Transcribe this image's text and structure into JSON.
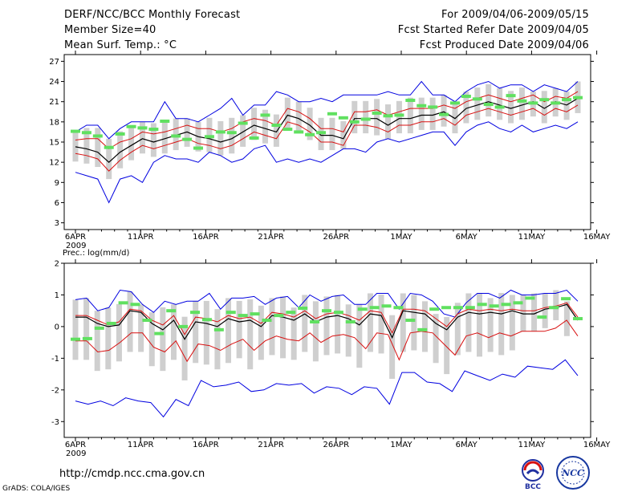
{
  "header": {
    "title": "DERF/NCC/BCC Monthly Forecast",
    "member_size": "Member Size=40",
    "variable": "Mean Surf. Temp.: °C",
    "period": "For 2009/04/06-2009/05/15",
    "started": "Fcst Started Refer Date 2009/04/05",
    "produced": "Fcst Produced Date 2009/04/06"
  },
  "footer": {
    "url": "http://cmdp.ncc.cma.gov.cn",
    "grads": "GrADS: COLA/IGES",
    "logo_bcc": "BCC",
    "logo_ncc": "NCC"
  },
  "colors": {
    "mean": "#000000",
    "band": "#d81010",
    "extreme": "#0000e0",
    "box": "#cfcfcf",
    "obs": "#60e060"
  },
  "chart_data": [
    {
      "type": "line",
      "title": "Mean Surf. Temp.: °C",
      "x_ticks": [
        "6APR",
        "11APR",
        "16APR",
        "21APR",
        "26APR",
        "1MAY",
        "6MAY",
        "11MAY",
        "16MAY"
      ],
      "x_year": "2009",
      "ylim": [
        2,
        28
      ],
      "y_ticks": [
        "3",
        "6",
        "9",
        "12",
        "15",
        "18",
        "21",
        "24",
        "27"
      ],
      "days": 40,
      "series": [
        {
          "name": "ensemble mean",
          "values": [
            14.3,
            14.0,
            13.5,
            12.0,
            13.5,
            14.5,
            15.5,
            15.0,
            15.5,
            16.0,
            16.5,
            15.8,
            15.5,
            15.0,
            15.5,
            16.5,
            17.5,
            17.0,
            16.5,
            19.0,
            18.5,
            17.5,
            16.0,
            16.0,
            15.5,
            18.5,
            18.5,
            18.5,
            17.5,
            18.5,
            18.5,
            19.0,
            19.0,
            19.5,
            18.5,
            20.0,
            20.5,
            21.0,
            20.5,
            20.0,
            20.5,
            21.0,
            20.0,
            21.0,
            20.5,
            21.5
          ]
        },
        {
          "name": "upper band",
          "values": [
            15.3,
            15.5,
            15.5,
            14.0,
            15.0,
            15.5,
            16.5,
            16.2,
            16.5,
            17.0,
            17.5,
            17.0,
            17.0,
            16.5,
            17.0,
            18.0,
            18.5,
            18.2,
            17.5,
            20.0,
            19.5,
            18.5,
            17.0,
            17.0,
            16.5,
            19.5,
            19.5,
            19.8,
            19.0,
            19.5,
            20.0,
            20.0,
            20.0,
            20.5,
            20.0,
            21.0,
            21.5,
            22.0,
            21.5,
            21.0,
            21.5,
            22.0,
            21.0,
            21.8,
            21.5,
            22.5
          ]
        },
        {
          "name": "lower band",
          "values": [
            13.3,
            13.0,
            12.5,
            10.7,
            12.3,
            13.5,
            14.5,
            14.0,
            14.5,
            15.0,
            15.5,
            14.8,
            14.5,
            14.0,
            14.5,
            15.5,
            16.5,
            16.0,
            15.5,
            18.0,
            17.5,
            16.5,
            15.0,
            15.0,
            14.5,
            17.5,
            17.5,
            17.2,
            16.5,
            17.5,
            17.5,
            18.0,
            18.0,
            18.5,
            17.5,
            19.0,
            19.5,
            20.0,
            19.5,
            19.0,
            19.5,
            20.0,
            19.0,
            20.0,
            19.5,
            20.5
          ]
        },
        {
          "name": "maximum",
          "values": [
            16.5,
            17.5,
            17.5,
            15.5,
            17.0,
            18.0,
            18.0,
            18.0,
            21.0,
            18.5,
            18.5,
            18.0,
            19.0,
            20.0,
            21.5,
            19.0,
            20.5,
            20.5,
            22.5,
            22.0,
            21.0,
            21.0,
            21.5,
            21.0,
            22.0,
            22.0,
            22.0,
            22.0,
            22.5,
            22.0,
            22.0,
            24.0,
            22.0,
            22.0,
            21.0,
            22.5,
            23.5,
            24.0,
            23.0,
            23.5,
            23.5,
            22.5,
            23.5,
            23.0,
            22.5,
            24.0
          ]
        },
        {
          "name": "minimum",
          "values": [
            10.5,
            10.0,
            9.5,
            6.0,
            9.5,
            10.0,
            9.0,
            12.0,
            13.0,
            12.5,
            12.5,
            12.0,
            13.5,
            13.0,
            12.0,
            12.5,
            14.0,
            14.5,
            12.0,
            12.5,
            12.0,
            12.5,
            12.0,
            13.0,
            14.0,
            14.0,
            13.5,
            15.0,
            15.5,
            15.0,
            15.5,
            16.0,
            16.5,
            16.5,
            14.5,
            16.5,
            17.5,
            18.0,
            17.0,
            16.5,
            17.5,
            16.5,
            17.0,
            17.5,
            17.0,
            18.0
          ]
        },
        {
          "name": "observation",
          "values": [
            16.6,
            16.4,
            15.9,
            14.2,
            16.2,
            17.3,
            17.1,
            16.9,
            18.1,
            15.9,
            15.4,
            14.1,
            15.8,
            16.5,
            16.4,
            17.8,
            15.6,
            19.0,
            17.5,
            16.9,
            16.5,
            16.1,
            16.4,
            19.2,
            18.6,
            18.0,
            18.4,
            19.3,
            18.9,
            19.0,
            21.2,
            20.4,
            20.2,
            19.1,
            20.8,
            21.8,
            21.4,
            20.6,
            20.2,
            21.9,
            21.1,
            20.8,
            21.3,
            20.8,
            21.3,
            21.6
          ]
        }
      ]
    },
    {
      "type": "line",
      "title": "Prec.: log(mm/d)",
      "x_ticks": [
        "6APR",
        "11APR",
        "16APR",
        "21APR",
        "26APR",
        "1MAY",
        "6MAY",
        "11MAY",
        "16MAY"
      ],
      "x_year": "2009",
      "ylim": [
        -3.5,
        2
      ],
      "y_ticks": [
        "-3",
        "-2",
        "-1",
        "0",
        "1",
        "2"
      ],
      "days": 40,
      "series": [
        {
          "name": "ensemble mean",
          "values": [
            0.3,
            0.3,
            0.1,
            0.0,
            0.05,
            0.5,
            0.45,
            0.1,
            -0.1,
            0.2,
            -0.4,
            0.15,
            0.1,
            0.0,
            0.25,
            0.15,
            0.2,
            0.0,
            0.35,
            0.3,
            0.2,
            0.4,
            0.15,
            0.3,
            0.35,
            0.25,
            0.05,
            0.4,
            0.35,
            -0.35,
            0.5,
            0.45,
            0.4,
            0.1,
            -0.1,
            0.3,
            0.45,
            0.4,
            0.45,
            0.4,
            0.5,
            0.4,
            0.4,
            0.55,
            0.6,
            0.7,
            0.2
          ]
        },
        {
          "name": "upper band",
          "values": [
            0.35,
            0.35,
            0.2,
            0.05,
            0.15,
            0.55,
            0.5,
            0.2,
            0.05,
            0.35,
            -0.25,
            0.3,
            0.25,
            0.15,
            0.35,
            0.25,
            0.3,
            0.1,
            0.45,
            0.4,
            0.3,
            0.5,
            0.25,
            0.4,
            0.45,
            0.35,
            0.2,
            0.5,
            0.45,
            -0.2,
            0.55,
            0.55,
            0.5,
            0.25,
            0.0,
            0.4,
            0.55,
            0.5,
            0.55,
            0.5,
            0.55,
            0.5,
            0.5,
            0.6,
            0.65,
            0.75,
            0.3
          ]
        },
        {
          "name": "lower band",
          "values": [
            -0.45,
            -0.45,
            -0.8,
            -0.75,
            -0.5,
            -0.2,
            -0.2,
            -0.65,
            -0.8,
            -0.45,
            -1.1,
            -0.55,
            -0.6,
            -0.75,
            -0.55,
            -0.4,
            -0.75,
            -0.45,
            -0.3,
            -0.4,
            -0.45,
            -0.2,
            -0.5,
            -0.3,
            -0.25,
            -0.35,
            -0.7,
            -0.2,
            -0.25,
            -1.05,
            -0.2,
            -0.15,
            -0.2,
            -0.55,
            -0.9,
            -0.3,
            -0.2,
            -0.35,
            -0.2,
            -0.3,
            -0.15,
            -0.15,
            -0.15,
            -0.05,
            0.2,
            -0.3
          ]
        },
        {
          "name": "maximum",
          "values": [
            0.85,
            0.9,
            0.5,
            0.6,
            1.15,
            1.1,
            0.7,
            0.45,
            0.8,
            0.7,
            0.8,
            0.8,
            1.05,
            0.55,
            0.9,
            0.9,
            0.95,
            0.7,
            0.9,
            0.95,
            0.6,
            1.0,
            0.8,
            0.95,
            1.0,
            0.7,
            0.7,
            1.05,
            1.05,
            0.55,
            1.05,
            1.0,
            0.8,
            0.4,
            0.3,
            0.75,
            1.05,
            1.05,
            0.9,
            1.15,
            1.0,
            1.0,
            1.05,
            1.05,
            1.15,
            0.8
          ]
        },
        {
          "name": "minimum",
          "values": [
            -2.35,
            -2.45,
            -2.35,
            -2.5,
            -2.25,
            -2.35,
            -2.4,
            -2.85,
            -2.3,
            -2.5,
            -1.7,
            -1.9,
            -1.85,
            -1.75,
            -2.05,
            -2.0,
            -1.8,
            -1.85,
            -1.8,
            -2.1,
            -1.9,
            -1.95,
            -2.15,
            -1.9,
            -1.95,
            -2.45,
            -1.45,
            -1.45,
            -1.75,
            -1.8,
            -2.05,
            -1.4,
            -1.55,
            -1.7,
            -1.5,
            -1.6,
            -1.25,
            -1.3,
            -1.35,
            -1.05,
            -1.55
          ]
        },
        {
          "name": "observation",
          "values": [
            -0.4,
            -0.38,
            -0.05,
            0.1,
            0.75,
            0.7,
            0.2,
            -0.22,
            0.5,
            0.0,
            0.45,
            0.22,
            -0.1,
            0.45,
            0.35,
            0.4,
            0.2,
            0.35,
            0.45,
            0.58,
            0.15,
            0.5,
            0.45,
            0.15,
            0.55,
            0.6,
            0.65,
            0.6,
            0.2,
            -0.1,
            0.55,
            0.6,
            0.6,
            0.6,
            0.7,
            0.65,
            0.7,
            0.75,
            0.9,
            0.3,
            0.6,
            0.88,
            0.25
          ]
        }
      ]
    }
  ]
}
